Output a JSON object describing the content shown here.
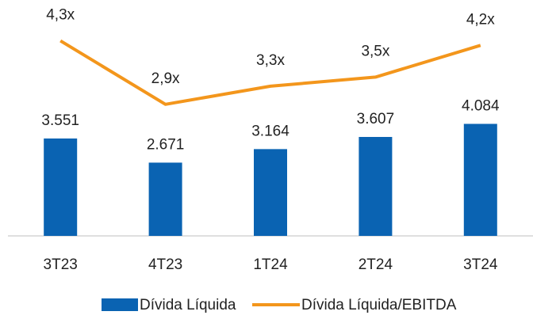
{
  "chart_data": {
    "type": "bar-line",
    "categories": [
      "3T23",
      "4T23",
      "1T24",
      "2T24",
      "3T24"
    ],
    "series": [
      {
        "name": "Dívida Líquida",
        "type": "bar",
        "color": "#0a63b2",
        "values": [
          3551,
          2671,
          3164,
          3607,
          4084
        ],
        "value_labels": [
          "3.551",
          "2.671",
          "3.164",
          "3.607",
          "4.084"
        ]
      },
      {
        "name": "Dívida Líquida/EBITDA",
        "type": "line",
        "axis": "y2",
        "color": "#f3961c",
        "values": [
          4.3,
          2.9,
          3.3,
          3.5,
          4.2
        ],
        "value_labels": [
          "4,3x",
          "2,9x",
          "3,3x",
          "3,5x",
          "4,2x"
        ]
      }
    ],
    "ylim": [
      0,
      8600
    ],
    "y2lim": [
      0,
      5.2
    ],
    "legend": "bottom"
  }
}
